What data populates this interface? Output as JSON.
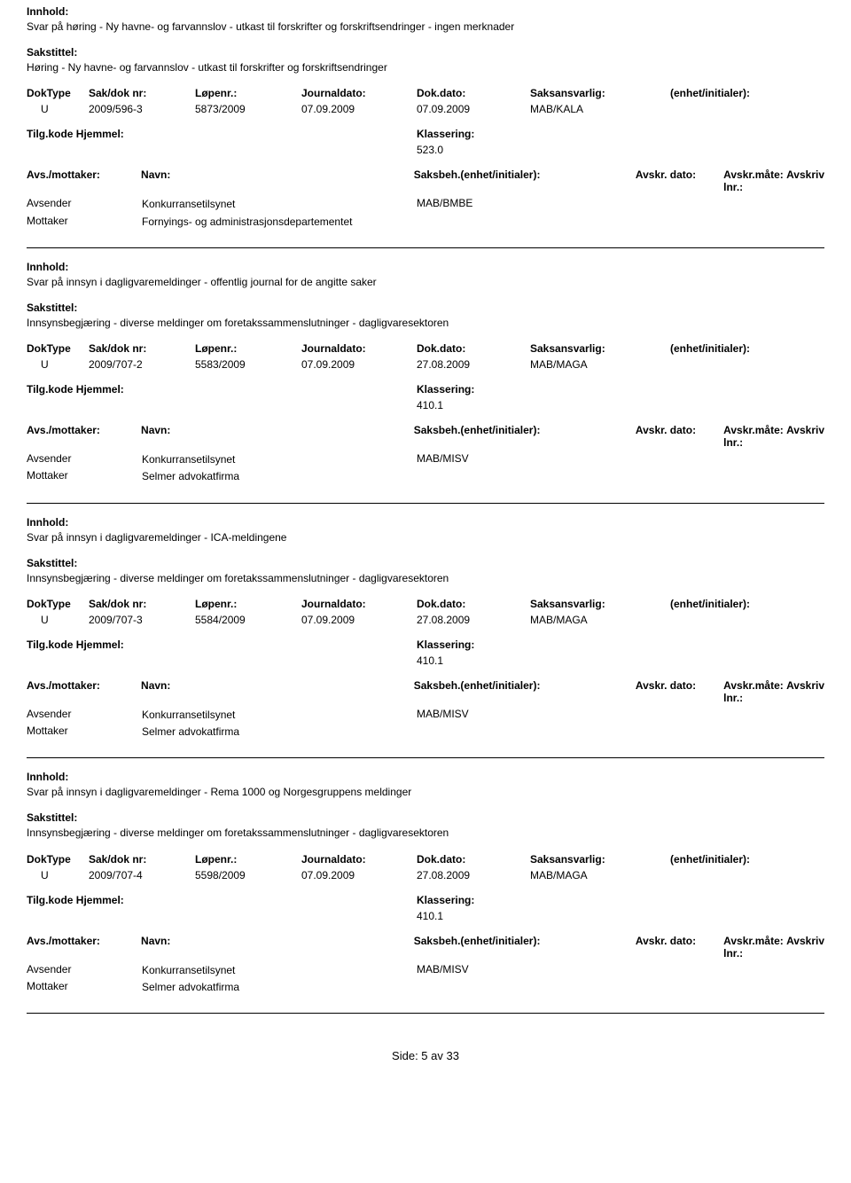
{
  "labels": {
    "innhold": "Innhold:",
    "sakstittel": "Sakstittel:",
    "doktype": "DokType",
    "sakdok": "Sak/dok nr:",
    "lopenr": "Løpenr.:",
    "journaldato": "Journaldato:",
    "dokdato": "Dok.dato:",
    "saksansvarlig": "Saksansvarlig:",
    "enhet": "(enhet/initialer):",
    "tilgkode": "Tilg.kode Hjemmel:",
    "klassering": "Klassering:",
    "avsmottaker": "Avs./mottaker:",
    "navn": "Navn:",
    "saksbeh": "Saksbeh.(enhet/initialer):",
    "avskrdato": "Avskr. dato:",
    "avskrmate": "Avskr.måte:",
    "avskrivlnr": "Avskriv lnr.:",
    "avsender": "Avsender",
    "mottaker": "Mottaker"
  },
  "records": [
    {
      "innhold": "Svar på høring - Ny havne- og farvannslov - utkast til forskrifter og forskriftsendringer - ingen merknader",
      "sakstittel": "Høring - Ny havne- og farvannslov - utkast til forskrifter og forskriftsendringer",
      "doktype": "U",
      "sakdok": "2009/596-3",
      "lopenr": "5873/2009",
      "journaldato": "07.09.2009",
      "dokdato": "07.09.2009",
      "saksansvarlig": "MAB/KALA",
      "klassering": "523.0",
      "parties": [
        {
          "role": "Avsender",
          "name": "Konkurransetilsynet",
          "code": "MAB/BMBE"
        },
        {
          "role": "Mottaker",
          "name": "Fornyings- og administrasjonsdepartementet",
          "code": ""
        }
      ]
    },
    {
      "innhold": "Svar på innsyn i dagligvaremeldinger - offentlig journal for de angitte saker",
      "sakstittel": "Innsynsbegjæring -  diverse meldinger om foretakssammenslutninger - dagligvaresektoren",
      "doktype": "U",
      "sakdok": "2009/707-2",
      "lopenr": "5583/2009",
      "journaldato": "07.09.2009",
      "dokdato": "27.08.2009",
      "saksansvarlig": "MAB/MAGA",
      "klassering": "410.1",
      "parties": [
        {
          "role": "Avsender",
          "name": "Konkurransetilsynet",
          "code": "MAB/MISV"
        },
        {
          "role": "Mottaker",
          "name": "Selmer advokatfirma",
          "code": ""
        }
      ]
    },
    {
      "innhold": "Svar på innsyn i dagligvaremeldinger - ICA-meldingene",
      "sakstittel": "Innsynsbegjæring -  diverse meldinger om foretakssammenslutninger - dagligvaresektoren",
      "doktype": "U",
      "sakdok": "2009/707-3",
      "lopenr": "5584/2009",
      "journaldato": "07.09.2009",
      "dokdato": "27.08.2009",
      "saksansvarlig": "MAB/MAGA",
      "klassering": "410.1",
      "parties": [
        {
          "role": "Avsender",
          "name": "Konkurransetilsynet",
          "code": "MAB/MISV"
        },
        {
          "role": "Mottaker",
          "name": "Selmer advokatfirma",
          "code": ""
        }
      ]
    },
    {
      "innhold": "Svar på innsyn i dagligvaremeldinger - Rema 1000 og Norgesgruppens meldinger",
      "sakstittel": "Innsynsbegjæring -  diverse meldinger om foretakssammenslutninger - dagligvaresektoren",
      "doktype": "U",
      "sakdok": "2009/707-4",
      "lopenr": "5598/2009",
      "journaldato": "07.09.2009",
      "dokdato": "27.08.2009",
      "saksansvarlig": "MAB/MAGA",
      "klassering": "410.1",
      "parties": [
        {
          "role": "Avsender",
          "name": "Konkurransetilsynet",
          "code": "MAB/MISV"
        },
        {
          "role": "Mottaker",
          "name": "Selmer advokatfirma",
          "code": ""
        }
      ]
    }
  ],
  "footer": "Side: 5 av 33"
}
